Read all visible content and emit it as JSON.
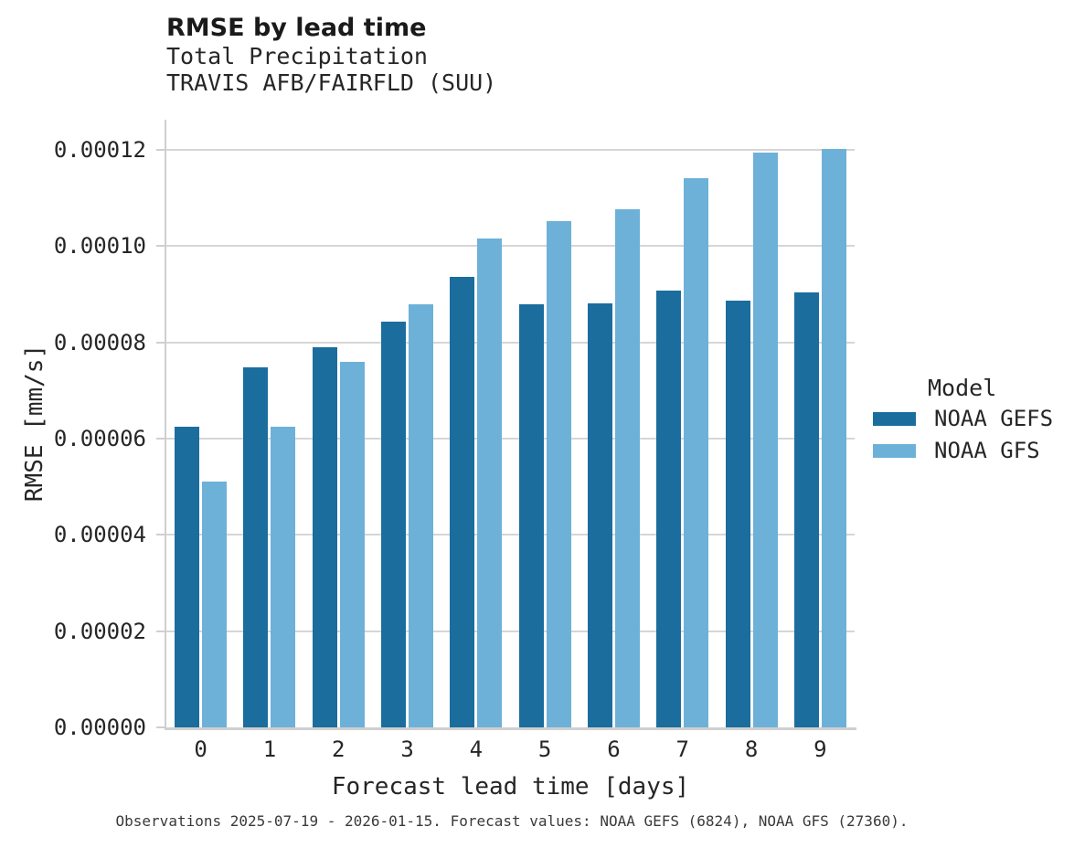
{
  "header": {
    "title": "RMSE by lead time",
    "subtitle_line1": "Total Precipitation",
    "subtitle_line2": "TRAVIS AFB/FAIRFLD (SUU)"
  },
  "chart_data": {
    "type": "bar",
    "title": "RMSE by lead time",
    "subtitle": [
      "Total Precipitation",
      "TRAVIS AFB/FAIRFLD (SUU)"
    ],
    "xlabel": "Forecast lead time [days]",
    "ylabel": "RMSE [mm/s]",
    "categories": [
      "0",
      "1",
      "2",
      "3",
      "4",
      "5",
      "6",
      "7",
      "8",
      "9"
    ],
    "series": [
      {
        "name": "NOAA GEFS",
        "color": "#1b6d9e",
        "values": [
          6.24e-05,
          7.49e-05,
          7.91e-05,
          8.44e-05,
          9.36e-05,
          8.79e-05,
          8.81e-05,
          9.08e-05,
          8.87e-05,
          9.04e-05
        ]
      },
      {
        "name": "NOAA GFS",
        "color": "#6db1d8",
        "values": [
          5.1e-05,
          6.24e-05,
          7.59e-05,
          8.8e-05,
          0.0001016,
          0.0001053,
          0.0001076,
          0.0001142,
          0.0001195,
          0.0001203
        ]
      }
    ],
    "ylim": [
      0,
      0.0001263
    ],
    "yticks": {
      "values": [
        0,
        2e-05,
        4e-05,
        6e-05,
        8e-05,
        0.0001,
        0.00012
      ],
      "labels": [
        "0.00000",
        "0.00002",
        "0.00004",
        "0.00006",
        "0.00008",
        "0.00010",
        "0.00012"
      ]
    },
    "legend": {
      "title": "Model",
      "position": "right"
    },
    "grid": "horizontal"
  },
  "footer": {
    "caption": "Observations 2025-07-19 - 2026-01-15. Forecast values: NOAA GEFS (6824), NOAA GFS (27360)."
  },
  "colors": {
    "gefs": "#1b6d9e",
    "gfs": "#6db1d8",
    "grid": "#d6d6d6",
    "spine": "#cfcfcf",
    "text": "#262626"
  }
}
